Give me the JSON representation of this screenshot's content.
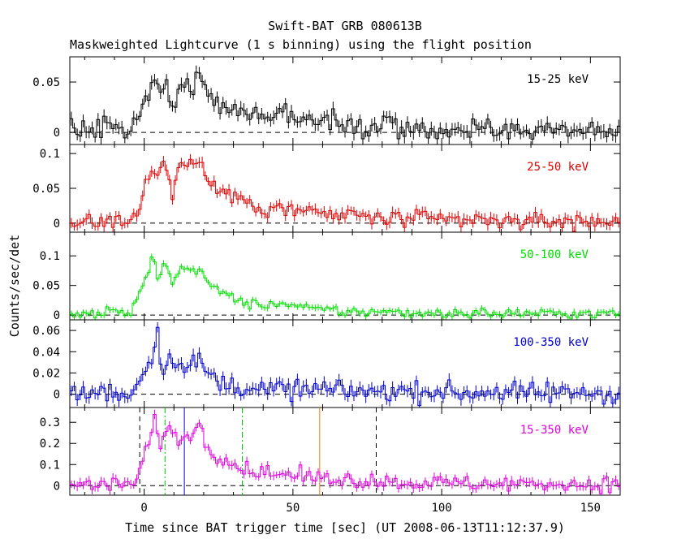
{
  "chart_data": {
    "type": "line",
    "title": "Swift-BAT GRB 080613B",
    "subtitle": "Maskweighted Lightcurve (1 s binning) using the flight position",
    "xlabel": "Time since BAT trigger time [sec] (UT 2008-06-13T11:12:37.9)",
    "ylabel": "Counts/sec/det",
    "xlim": [
      -25,
      160
    ],
    "x_ticks": [
      0,
      50,
      100,
      150
    ],
    "x_tick_labels": [
      "0",
      "50",
      "100",
      "150"
    ],
    "grid": false,
    "binning_sec": 1,
    "panels": [
      {
        "band": "15-25 keV",
        "color": "#000000",
        "ylim": [
          -0.012,
          0.075
        ],
        "y_ticks": [
          0,
          0.05
        ],
        "y_tick_labels": [
          "0",
          "0.05"
        ],
        "zero_line": true,
        "anchors": [
          [
            -25,
            0.002
          ],
          [
            -10,
            0.004
          ],
          [
            -5,
            0.002
          ],
          [
            -2,
            0.018
          ],
          [
            1,
            0.032
          ],
          [
            3,
            0.05
          ],
          [
            5,
            0.033
          ],
          [
            7,
            0.046
          ],
          [
            10,
            0.03
          ],
          [
            12,
            0.05
          ],
          [
            15,
            0.04
          ],
          [
            17,
            0.046
          ],
          [
            18,
            0.062
          ],
          [
            19,
            0.05
          ],
          [
            21,
            0.042
          ],
          [
            23,
            0.03
          ],
          [
            26,
            0.027
          ],
          [
            30,
            0.022
          ],
          [
            34,
            0.02
          ],
          [
            40,
            0.016
          ],
          [
            50,
            0.014
          ],
          [
            60,
            0.01
          ],
          [
            70,
            0.008
          ],
          [
            80,
            0.006
          ],
          [
            100,
            0.004
          ],
          [
            120,
            0.002
          ],
          [
            160,
            0.001
          ]
        ],
        "noise": 0.0055
      },
      {
        "band": "25-50 keV",
        "color": "#e00000",
        "ylim": [
          -0.013,
          0.113
        ],
        "y_ticks": [
          0,
          0.05,
          0.1
        ],
        "y_tick_labels": [
          "0",
          "0.05",
          "0.1"
        ],
        "zero_line": true,
        "anchors": [
          [
            -25,
            0.002
          ],
          [
            -8,
            0.003
          ],
          [
            -4,
            0.006
          ],
          [
            -1,
            0.03
          ],
          [
            1,
            0.065
          ],
          [
            3,
            0.09
          ],
          [
            5,
            0.055
          ],
          [
            6,
            0.095
          ],
          [
            8,
            0.075
          ],
          [
            10,
            0.03
          ],
          [
            11,
            0.09
          ],
          [
            13,
            0.082
          ],
          [
            15,
            0.087
          ],
          [
            17,
            0.078
          ],
          [
            19,
            0.098
          ],
          [
            21,
            0.06
          ],
          [
            24,
            0.048
          ],
          [
            27,
            0.045
          ],
          [
            30,
            0.04
          ],
          [
            33,
            0.03
          ],
          [
            36,
            0.024
          ],
          [
            45,
            0.022
          ],
          [
            55,
            0.015
          ],
          [
            65,
            0.011
          ],
          [
            80,
            0.007
          ],
          [
            100,
            0.004
          ],
          [
            160,
            0.002
          ]
        ],
        "noise": 0.0065
      },
      {
        "band": "50-100 keV",
        "color": "#00e000",
        "ylim": [
          -0.008,
          0.14
        ],
        "y_ticks": [
          0,
          0.05,
          0.1
        ],
        "y_tick_labels": [
          "0",
          "0.05",
          "0.1"
        ],
        "zero_line": true,
        "anchors": [
          [
            -25,
            0.003
          ],
          [
            -6,
            0.003
          ],
          [
            -4,
            0.005
          ],
          [
            -2,
            0.03
          ],
          [
            0,
            0.06
          ],
          [
            2,
            0.08
          ],
          [
            3,
            0.125
          ],
          [
            4,
            0.06
          ],
          [
            6,
            0.08
          ],
          [
            8,
            0.085
          ],
          [
            10,
            0.045
          ],
          [
            11,
            0.082
          ],
          [
            13,
            0.075
          ],
          [
            15,
            0.07
          ],
          [
            17,
            0.078
          ],
          [
            19,
            0.085
          ],
          [
            21,
            0.055
          ],
          [
            24,
            0.042
          ],
          [
            27,
            0.036
          ],
          [
            30,
            0.03
          ],
          [
            33,
            0.022
          ],
          [
            38,
            0.016
          ],
          [
            45,
            0.02
          ],
          [
            55,
            0.01
          ],
          [
            70,
            0.006
          ],
          [
            90,
            0.004
          ],
          [
            160,
            0.002
          ]
        ],
        "noise": 0.0045
      },
      {
        "band": "100-350 keV",
        "color": "#0000d0",
        "ylim": [
          -0.0125,
          0.07
        ],
        "y_ticks": [
          0,
          0.02,
          0.04,
          0.06
        ],
        "y_tick_labels": [
          "0",
          "0.02",
          "0.04",
          "0.06"
        ],
        "zero_line": true,
        "anchors": [
          [
            -25,
            0.0
          ],
          [
            -4,
            0.002
          ],
          [
            -2,
            0.008
          ],
          [
            -1,
            0.02
          ],
          [
            1,
            0.028
          ],
          [
            3,
            0.04
          ],
          [
            4,
            0.062
          ],
          [
            6,
            0.025
          ],
          [
            8,
            0.03
          ],
          [
            10,
            0.033
          ],
          [
            12,
            0.035
          ],
          [
            14,
            0.022
          ],
          [
            16,
            0.03
          ],
          [
            18,
            0.032
          ],
          [
            20,
            0.022
          ],
          [
            23,
            0.014
          ],
          [
            26,
            0.01
          ],
          [
            30,
            0.008
          ],
          [
            40,
            0.005
          ],
          [
            60,
            0.004
          ],
          [
            100,
            0.002
          ],
          [
            160,
            0.001
          ]
        ],
        "noise": 0.0048
      },
      {
        "band": "15-350 keV",
        "color": "#e000e0",
        "ylim": [
          -0.045,
          0.37
        ],
        "y_ticks": [
          0,
          0.1,
          0.2,
          0.3
        ],
        "y_tick_labels": [
          "0",
          "0.1",
          "0.2",
          "0.3"
        ],
        "zero_line": true,
        "anchors": [
          [
            -25,
            0.005
          ],
          [
            -6,
            0.008
          ],
          [
            -3,
            0.015
          ],
          [
            -1,
            0.09
          ],
          [
            1,
            0.18
          ],
          [
            3,
            0.27
          ],
          [
            4,
            0.34
          ],
          [
            5,
            0.18
          ],
          [
            7,
            0.25
          ],
          [
            9,
            0.27
          ],
          [
            11,
            0.22
          ],
          [
            13,
            0.23
          ],
          [
            15,
            0.25
          ],
          [
            17,
            0.26
          ],
          [
            19,
            0.28
          ],
          [
            21,
            0.18
          ],
          [
            24,
            0.15
          ],
          [
            27,
            0.13
          ],
          [
            30,
            0.11
          ],
          [
            33,
            0.08
          ],
          [
            40,
            0.06
          ],
          [
            50,
            0.05
          ],
          [
            60,
            0.035
          ],
          [
            80,
            0.02
          ],
          [
            100,
            0.012
          ],
          [
            160,
            0.005
          ]
        ],
        "noise": 0.018,
        "markers": [
          {
            "x": -1.5,
            "color": "#000000",
            "style": "dashed"
          },
          {
            "x": 7.0,
            "color": "#00c000",
            "style": "dashdot"
          },
          {
            "x": 13.5,
            "color": "#0000d0",
            "style": "solid"
          },
          {
            "x": 33.0,
            "color": "#00c000",
            "style": "dashdot"
          },
          {
            "x": 59.0,
            "color": "#e08000",
            "style": "solid"
          },
          {
            "x": 78.0,
            "color": "#000000",
            "style": "dashed"
          }
        ]
      }
    ]
  }
}
